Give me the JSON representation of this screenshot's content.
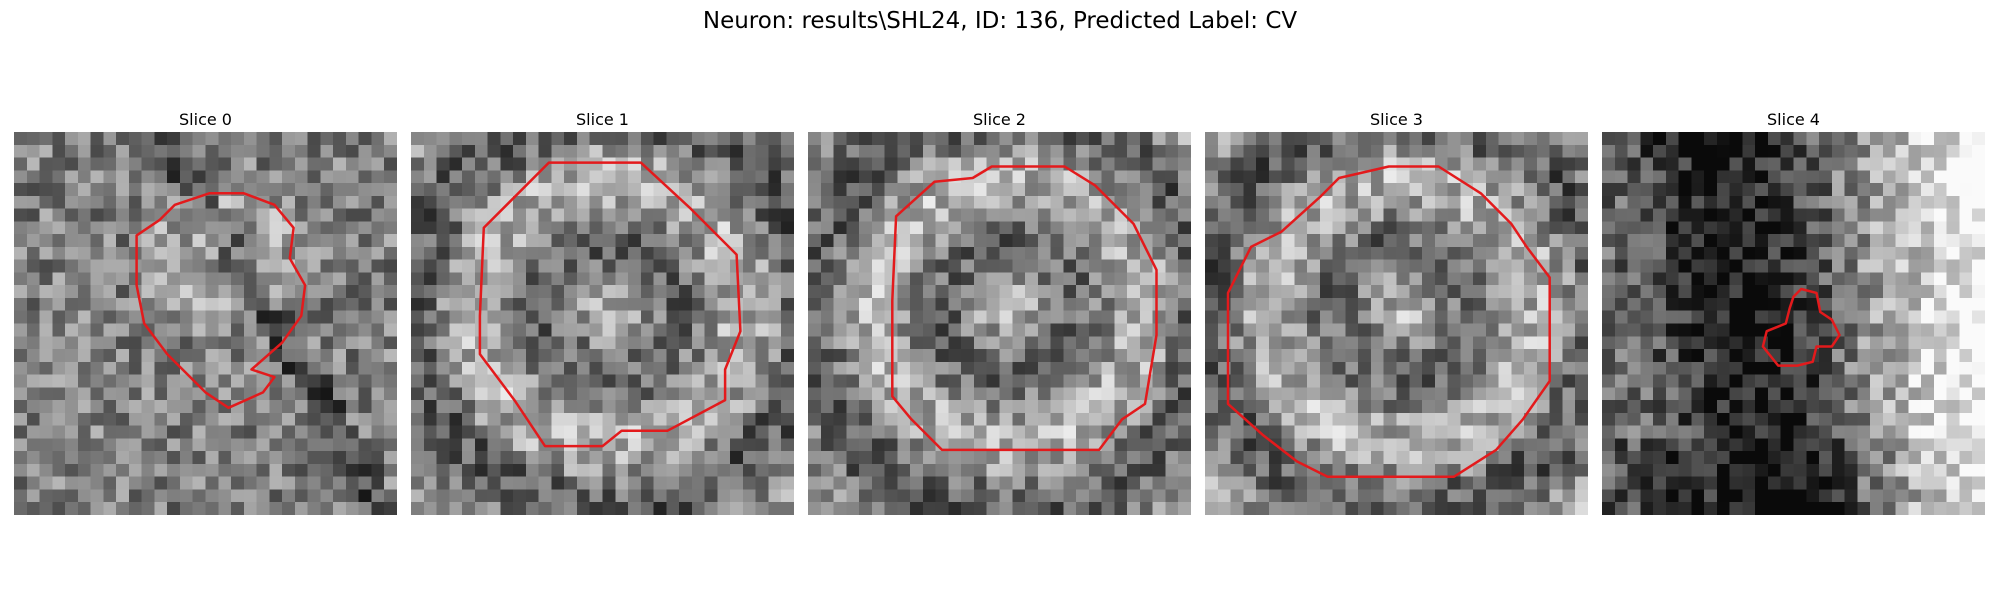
{
  "figure": {
    "title": "Neuron: results\\SHL24, ID: 136, Predicted Label: CV"
  },
  "contour_color": "#e31a1c",
  "colormap": "grayscale",
  "panels": [
    {
      "title": "Slice 0",
      "seed": 11,
      "pattern": "blob",
      "contour": [
        [
          0.32,
          0.27
        ],
        [
          0.38,
          0.23
        ],
        [
          0.42,
          0.19
        ],
        [
          0.51,
          0.16
        ],
        [
          0.6,
          0.16
        ],
        [
          0.68,
          0.19
        ],
        [
          0.73,
          0.25
        ],
        [
          0.72,
          0.33
        ],
        [
          0.76,
          0.4
        ],
        [
          0.75,
          0.48
        ],
        [
          0.7,
          0.55
        ],
        [
          0.62,
          0.62
        ],
        [
          0.68,
          0.64
        ],
        [
          0.65,
          0.68
        ],
        [
          0.56,
          0.72
        ],
        [
          0.5,
          0.68
        ],
        [
          0.4,
          0.58
        ],
        [
          0.34,
          0.5
        ],
        [
          0.32,
          0.4
        ]
      ]
    },
    {
      "title": "Slice 1",
      "seed": 23,
      "pattern": "ring",
      "contour": [
        [
          0.36,
          0.08
        ],
        [
          0.6,
          0.08
        ],
        [
          0.73,
          0.2
        ],
        [
          0.85,
          0.32
        ],
        [
          0.86,
          0.52
        ],
        [
          0.82,
          0.62
        ],
        [
          0.82,
          0.7
        ],
        [
          0.67,
          0.78
        ],
        [
          0.55,
          0.78
        ],
        [
          0.5,
          0.82
        ],
        [
          0.35,
          0.82
        ],
        [
          0.27,
          0.7
        ],
        [
          0.18,
          0.58
        ],
        [
          0.18,
          0.48
        ],
        [
          0.19,
          0.25
        ]
      ]
    },
    {
      "title": "Slice 2",
      "seed": 37,
      "pattern": "ring",
      "contour": [
        [
          0.23,
          0.22
        ],
        [
          0.33,
          0.13
        ],
        [
          0.43,
          0.12
        ],
        [
          0.48,
          0.09
        ],
        [
          0.67,
          0.09
        ],
        [
          0.75,
          0.14
        ],
        [
          0.85,
          0.24
        ],
        [
          0.91,
          0.36
        ],
        [
          0.91,
          0.53
        ],
        [
          0.88,
          0.71
        ],
        [
          0.82,
          0.75
        ],
        [
          0.76,
          0.83
        ],
        [
          0.35,
          0.83
        ],
        [
          0.27,
          0.75
        ],
        [
          0.22,
          0.69
        ],
        [
          0.22,
          0.44
        ]
      ]
    },
    {
      "title": "Slice 3",
      "seed": 51,
      "pattern": "ring",
      "contour": [
        [
          0.3,
          0.17
        ],
        [
          0.35,
          0.12
        ],
        [
          0.48,
          0.09
        ],
        [
          0.61,
          0.09
        ],
        [
          0.72,
          0.16
        ],
        [
          0.8,
          0.24
        ],
        [
          0.84,
          0.3
        ],
        [
          0.9,
          0.38
        ],
        [
          0.9,
          0.65
        ],
        [
          0.83,
          0.75
        ],
        [
          0.76,
          0.83
        ],
        [
          0.65,
          0.9
        ],
        [
          0.32,
          0.9
        ],
        [
          0.24,
          0.86
        ],
        [
          0.15,
          0.79
        ],
        [
          0.06,
          0.71
        ],
        [
          0.06,
          0.42
        ],
        [
          0.12,
          0.3
        ],
        [
          0.2,
          0.26
        ]
      ]
    },
    {
      "title": "Slice 4",
      "seed": 67,
      "pattern": "gradient",
      "contour": [
        [
          0.5,
          0.43
        ],
        [
          0.52,
          0.41
        ],
        [
          0.56,
          0.42
        ],
        [
          0.57,
          0.47
        ],
        [
          0.6,
          0.49
        ],
        [
          0.62,
          0.53
        ],
        [
          0.6,
          0.56
        ],
        [
          0.56,
          0.56
        ],
        [
          0.55,
          0.6
        ],
        [
          0.51,
          0.61
        ],
        [
          0.46,
          0.61
        ],
        [
          0.42,
          0.56
        ],
        [
          0.43,
          0.52
        ],
        [
          0.48,
          0.5
        ],
        [
          0.49,
          0.46
        ]
      ]
    }
  ]
}
